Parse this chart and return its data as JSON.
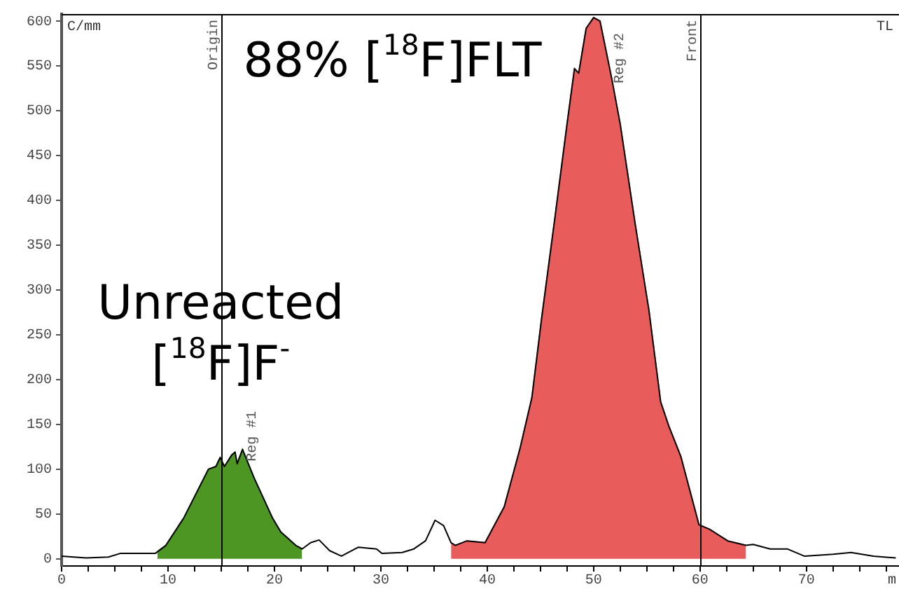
{
  "chart_data": {
    "type": "line",
    "ylabel": "C/mm",
    "xlabel": "m",
    "xlim": [
      0,
      78.7
    ],
    "ylim": [
      -8,
      608
    ],
    "xticks": [
      0,
      {
        "value": 2.5,
        "label": null
      },
      {
        "value": 5,
        "label": null
      },
      {
        "value": 7.5,
        "label": null
      },
      10,
      {
        "value": 12.5,
        "label": null
      },
      {
        "value": 15,
        "label": null
      },
      {
        "value": 17.5,
        "label": null
      },
      20,
      {
        "value": 22.5,
        "label": null
      },
      {
        "value": 25,
        "label": null
      },
      {
        "value": 27.5,
        "label": null
      },
      30,
      {
        "value": 32.5,
        "label": null
      },
      {
        "value": 35,
        "label": null
      },
      {
        "value": 37.5,
        "label": null
      },
      40,
      {
        "value": 42.5,
        "label": null
      },
      {
        "value": 45,
        "label": null
      },
      {
        "value": 47.5,
        "label": null
      },
      50,
      {
        "value": 52.5,
        "label": null
      },
      {
        "value": 55,
        "label": null
      },
      {
        "value": 57.5,
        "label": null
      },
      60,
      {
        "value": 62.5,
        "label": null
      },
      {
        "value": 65,
        "label": null
      },
      {
        "value": 67.5,
        "label": null
      },
      70,
      {
        "value": 72.5,
        "label": null
      },
      {
        "value": 75,
        "label": null
      },
      {
        "value": 77.5,
        "label": null
      }
    ],
    "yticks": [
      0,
      50,
      100,
      150,
      200,
      250,
      300,
      350,
      400,
      450,
      500,
      550,
      600
    ],
    "grid": false,
    "legend": false,
    "series": [
      {
        "color": "#000000",
        "x": [
          0,
          2.3,
          4.4,
          5.5,
          8.8,
          9.8,
          11.5,
          13.8,
          14.5,
          14.9,
          15.3,
          16,
          16.3,
          16.5,
          17,
          18.1,
          19.8,
          20.6,
          22,
          22.6,
          23.4,
          24.2,
          25.2,
          26.3,
          27.9,
          29.6,
          30.1,
          32,
          33.1,
          34.2,
          35.1,
          35.9,
          36.6,
          37,
          38.1,
          39.8,
          41.6,
          43.1,
          44.2,
          45.1,
          46.4,
          47.5,
          48.2,
          48.6,
          49.3,
          50,
          50.6,
          51.7,
          52.5,
          53.9,
          55.2,
          56.3,
          57.1,
          58.2,
          59.9,
          60.9,
          62.6,
          64.3,
          65,
          66.6,
          68.2,
          69.8,
          72.5,
          74.2,
          76.3,
          78.4
        ],
        "values": [
          3,
          1,
          2,
          6,
          6,
          15,
          46,
          100,
          103,
          113,
          103,
          116,
          119,
          106,
          122,
          90,
          46,
          30,
          15,
          11,
          18,
          21,
          9,
          3,
          13,
          11,
          6,
          7,
          11,
          20,
          43,
          37,
          18,
          15,
          20,
          18,
          58,
          124,
          180,
          267,
          384,
          485,
          547,
          542,
          592,
          604,
          600,
          536,
          485,
          374,
          277,
          175,
          147,
          114,
          38,
          33,
          20,
          15,
          16,
          11,
          11,
          3,
          5,
          7,
          3,
          1
        ]
      },
      {
        "type": "area",
        "color": "#4e9624",
        "x": [
          9,
          9.8,
          11.5,
          13.8,
          14.5,
          14.9,
          15.3,
          16,
          16.3,
          16.5,
          17,
          18.1,
          19.8,
          20.6,
          22,
          22.6
        ],
        "values": [
          8,
          15,
          46,
          100,
          103,
          113,
          103,
          116,
          119,
          106,
          122,
          90,
          46,
          30,
          15,
          11
        ]
      },
      {
        "type": "area",
        "color": "#e85c5c",
        "x": [
          36.6,
          37,
          38.1,
          39.8,
          41.6,
          43.1,
          44.2,
          45.1,
          46.4,
          47.5,
          48.2,
          48.6,
          49.3,
          50,
          50.6,
          51.7,
          52.5,
          53.9,
          55.2,
          56.3,
          57.1,
          58.2,
          59.9,
          60.9,
          62.6,
          64.3
        ],
        "values": [
          18,
          15,
          20,
          18,
          58,
          124,
          180,
          267,
          384,
          485,
          547,
          542,
          592,
          604,
          600,
          536,
          485,
          374,
          277,
          175,
          147,
          114,
          38,
          33,
          20,
          15
        ]
      }
    ],
    "ref_lines": [
      {
        "axis": "x",
        "value": 15,
        "label": "Origin"
      },
      {
        "axis": "x",
        "value": 60,
        "label": "Front"
      }
    ],
    "annotations": [
      "88% [$^{18}$F]FLT",
      "Unreacted",
      "[$^{18}$F]F$^{-}$",
      "Reg #1",
      "Reg #2",
      "TL"
    ]
  }
}
